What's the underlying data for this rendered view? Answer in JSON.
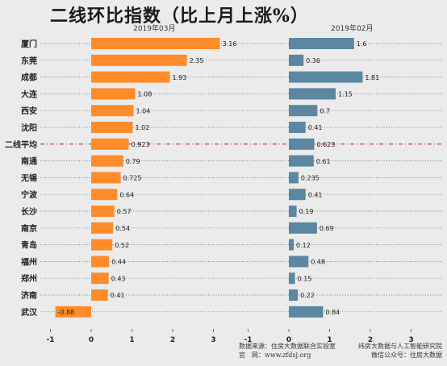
{
  "chart_data": {
    "type": "bar",
    "orientation": "horizontal",
    "title": "二线环比指数（比上月上涨%）",
    "categories": [
      "厦门",
      "东莞",
      "成都",
      "大连",
      "西安",
      "沈阳",
      "二线平均",
      "南通",
      "无锡",
      "宁波",
      "长沙",
      "南京",
      "青岛",
      "福州",
      "郑州",
      "济南",
      "武汉"
    ],
    "highlight_category": "二线平均",
    "xlim": [
      -1,
      3.6
    ],
    "xticks": [
      "-1",
      "0",
      "1",
      "2",
      "3"
    ],
    "panels": [
      {
        "name": "2019年03月",
        "color": "#ff8c2a",
        "values": [
          3.16,
          2.35,
          1.93,
          1.08,
          1.04,
          1.02,
          0.923,
          0.79,
          0.725,
          0.64,
          0.57,
          0.54,
          0.52,
          0.44,
          0.43,
          0.41,
          -0.88
        ],
        "labels": [
          "3.16",
          "2.35",
          "1.93",
          "1.08",
          "1.04",
          "1.02",
          "0.923",
          "0.79",
          "0.725",
          "0.64",
          "0.57",
          "0.54",
          "0.52",
          "0.44",
          "0.43",
          "0.41",
          "-0.88"
        ]
      },
      {
        "name": "2019年02月",
        "color": "#5b87a0",
        "values": [
          1.6,
          0.36,
          1.81,
          1.15,
          0.7,
          0.41,
          0.623,
          0.61,
          0.235,
          0.41,
          0.19,
          0.69,
          0.12,
          0.48,
          0.15,
          0.22,
          0.84
        ],
        "labels": [
          "1.6",
          "0.36",
          "1.81",
          "1.15",
          "0.7",
          "0.41",
          "0.623",
          "0.61",
          "0.235",
          "0.41",
          "0.19",
          "0.69",
          "0.12",
          "0.48",
          "0.15",
          "0.22",
          "0.84"
        ]
      }
    ],
    "grid": "dotted-horizontal"
  },
  "footer": {
    "source_left": "数据来源：住房大数据联合实验室",
    "source_right": "纬房大数据与人工智能研究院",
    "website_left": "官　网：www.zfdsj.org",
    "website_right": "微信公众号：住房大数据"
  }
}
